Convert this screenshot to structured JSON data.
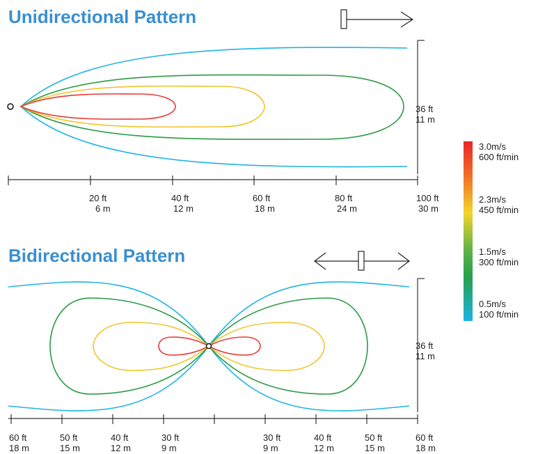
{
  "unidirectional": {
    "title": "Unidirectional Pattern",
    "height_label": {
      "ft": "36 ft",
      "m": "11 m"
    },
    "x_ticks": [
      {
        "ft": "20 ft",
        "m": "6 m"
      },
      {
        "ft": "40 ft",
        "m": "12 m"
      },
      {
        "ft": "60 ft",
        "m": "18 m"
      },
      {
        "ft": "80 ft",
        "m": "24 m"
      },
      {
        "ft": "100 ft",
        "m": "30 m"
      }
    ]
  },
  "bidirectional": {
    "title": "Bidirectional Pattern",
    "height_label": {
      "ft": "36 ft",
      "m": "11 m"
    },
    "x_ticks_left": [
      {
        "ft": "60 ft",
        "m": "18 m"
      },
      {
        "ft": "50 ft",
        "m": "15 m"
      },
      {
        "ft": "40 ft",
        "m": "12 m"
      },
      {
        "ft": "30 ft",
        "m": "9 m"
      }
    ],
    "x_ticks_right": [
      {
        "ft": "30 ft",
        "m": "9 m"
      },
      {
        "ft": "40 ft",
        "m": "12 m"
      },
      {
        "ft": "50 ft",
        "m": "15 m"
      },
      {
        "ft": "60 ft",
        "m": "18 m"
      }
    ]
  },
  "legend": {
    "items": [
      {
        "ms": "3.0m/s",
        "fpm": "600 ft/min"
      },
      {
        "ms": "2.3m/s",
        "fpm": "450 ft/min"
      },
      {
        "ms": "1.5m/s",
        "fpm": "300 ft/min"
      },
      {
        "ms": "0.5m/s",
        "fpm": "100 ft/min"
      }
    ],
    "colors": [
      "#e8262a",
      "#f3d42b",
      "#27a049",
      "#1eb3e6"
    ]
  },
  "contour_colors": {
    "red": "#e53a35",
    "yellow": "#f0c52c",
    "green": "#2c9a44",
    "cyan": "#1eb4e3"
  },
  "icons": [
    "unidirectional-fan-arrow-icon",
    "bidirectional-fan-arrow-icon",
    "fan-origin-icon"
  ]
}
